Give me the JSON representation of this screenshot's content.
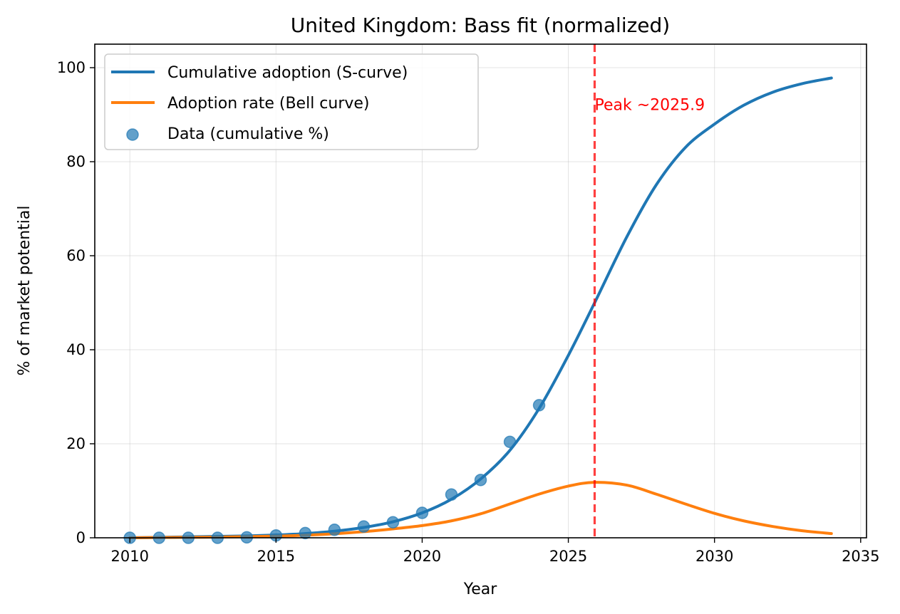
{
  "chart_data": {
    "type": "line",
    "title": "United Kingdom: Bass fit (normalized)",
    "xlabel": "Year",
    "ylabel": "% of market potential",
    "xlim": [
      2008.8,
      2035.2
    ],
    "ylim": [
      0,
      105
    ],
    "xticks": [
      2010,
      2015,
      2020,
      2025,
      2030,
      2035
    ],
    "yticks": [
      0,
      20,
      40,
      60,
      80,
      100
    ],
    "grid": true,
    "legend_position": "top-left",
    "series": [
      {
        "name": "Cumulative adoption (S-curve)",
        "kind": "line",
        "color": "#1f77b4",
        "x": [
          2010,
          2011,
          2012,
          2013,
          2014,
          2015,
          2016,
          2017,
          2018,
          2019,
          2020,
          2021,
          2022,
          2023,
          2024,
          2025,
          2025.9,
          2027,
          2028,
          2029,
          2030,
          2031,
          2032,
          2033,
          2034
        ],
        "y": [
          0,
          0.1,
          0.2,
          0.3,
          0.4,
          0.6,
          0.9,
          1.4,
          2.2,
          3.4,
          5.3,
          8.2,
          12.5,
          18.6,
          27.5,
          38.8,
          50.0,
          64.0,
          75.0,
          83.0,
          88.0,
          92.0,
          94.8,
          96.6,
          97.8
        ]
      },
      {
        "name": "Adoption rate (Bell curve)",
        "kind": "line",
        "color": "#ff7f0e",
        "x": [
          2010,
          2011,
          2012,
          2013,
          2014,
          2015,
          2016,
          2017,
          2018,
          2019,
          2020,
          2021,
          2022,
          2023,
          2024,
          2025,
          2025.9,
          2027,
          2028,
          2029,
          2030,
          2031,
          2032,
          2033,
          2034
        ],
        "y": [
          0,
          0.05,
          0.1,
          0.15,
          0.25,
          0.35,
          0.55,
          0.85,
          1.3,
          1.9,
          2.6,
          3.6,
          5.1,
          7.2,
          9.3,
          11.0,
          11.8,
          11.2,
          9.3,
          7.2,
          5.2,
          3.6,
          2.4,
          1.5,
          0.9
        ]
      },
      {
        "name": "Data (cumulative %)",
        "kind": "scatter",
        "color": "#1f77b4",
        "x": [
          2010,
          2011,
          2012,
          2013,
          2014,
          2015,
          2016,
          2017,
          2018,
          2019,
          2020,
          2021,
          2022,
          2023,
          2024
        ],
        "y": [
          0,
          0,
          0,
          0,
          0.1,
          0.5,
          1.0,
          1.7,
          2.4,
          3.3,
          5.3,
          9.2,
          12.3,
          20.4,
          28.2
        ]
      }
    ],
    "annotations": [
      {
        "type": "vline",
        "x": 2025.9,
        "color": "#ff0000",
        "style": "dashed"
      },
      {
        "type": "text",
        "text": "Peak ~2025.9",
        "x": 2025.9,
        "y": 91,
        "color": "#ff0000"
      }
    ]
  }
}
